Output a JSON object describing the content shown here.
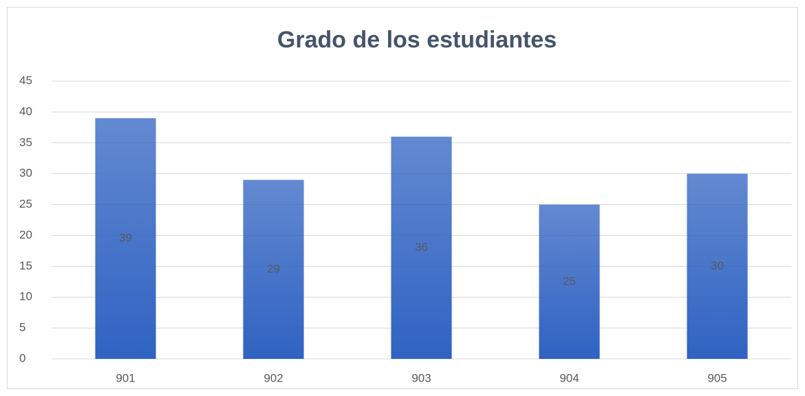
{
  "chart_data": {
    "type": "bar",
    "title": "Grado de los estudiantes",
    "categories": [
      "901",
      "902",
      "903",
      "904",
      "905"
    ],
    "values": [
      39,
      29,
      36,
      25,
      30
    ],
    "color": "#2f62c2",
    "ylim": [
      0,
      45
    ],
    "yticks": [
      0,
      5,
      10,
      15,
      20,
      25,
      30,
      35,
      40,
      45
    ],
    "grid": true
  }
}
